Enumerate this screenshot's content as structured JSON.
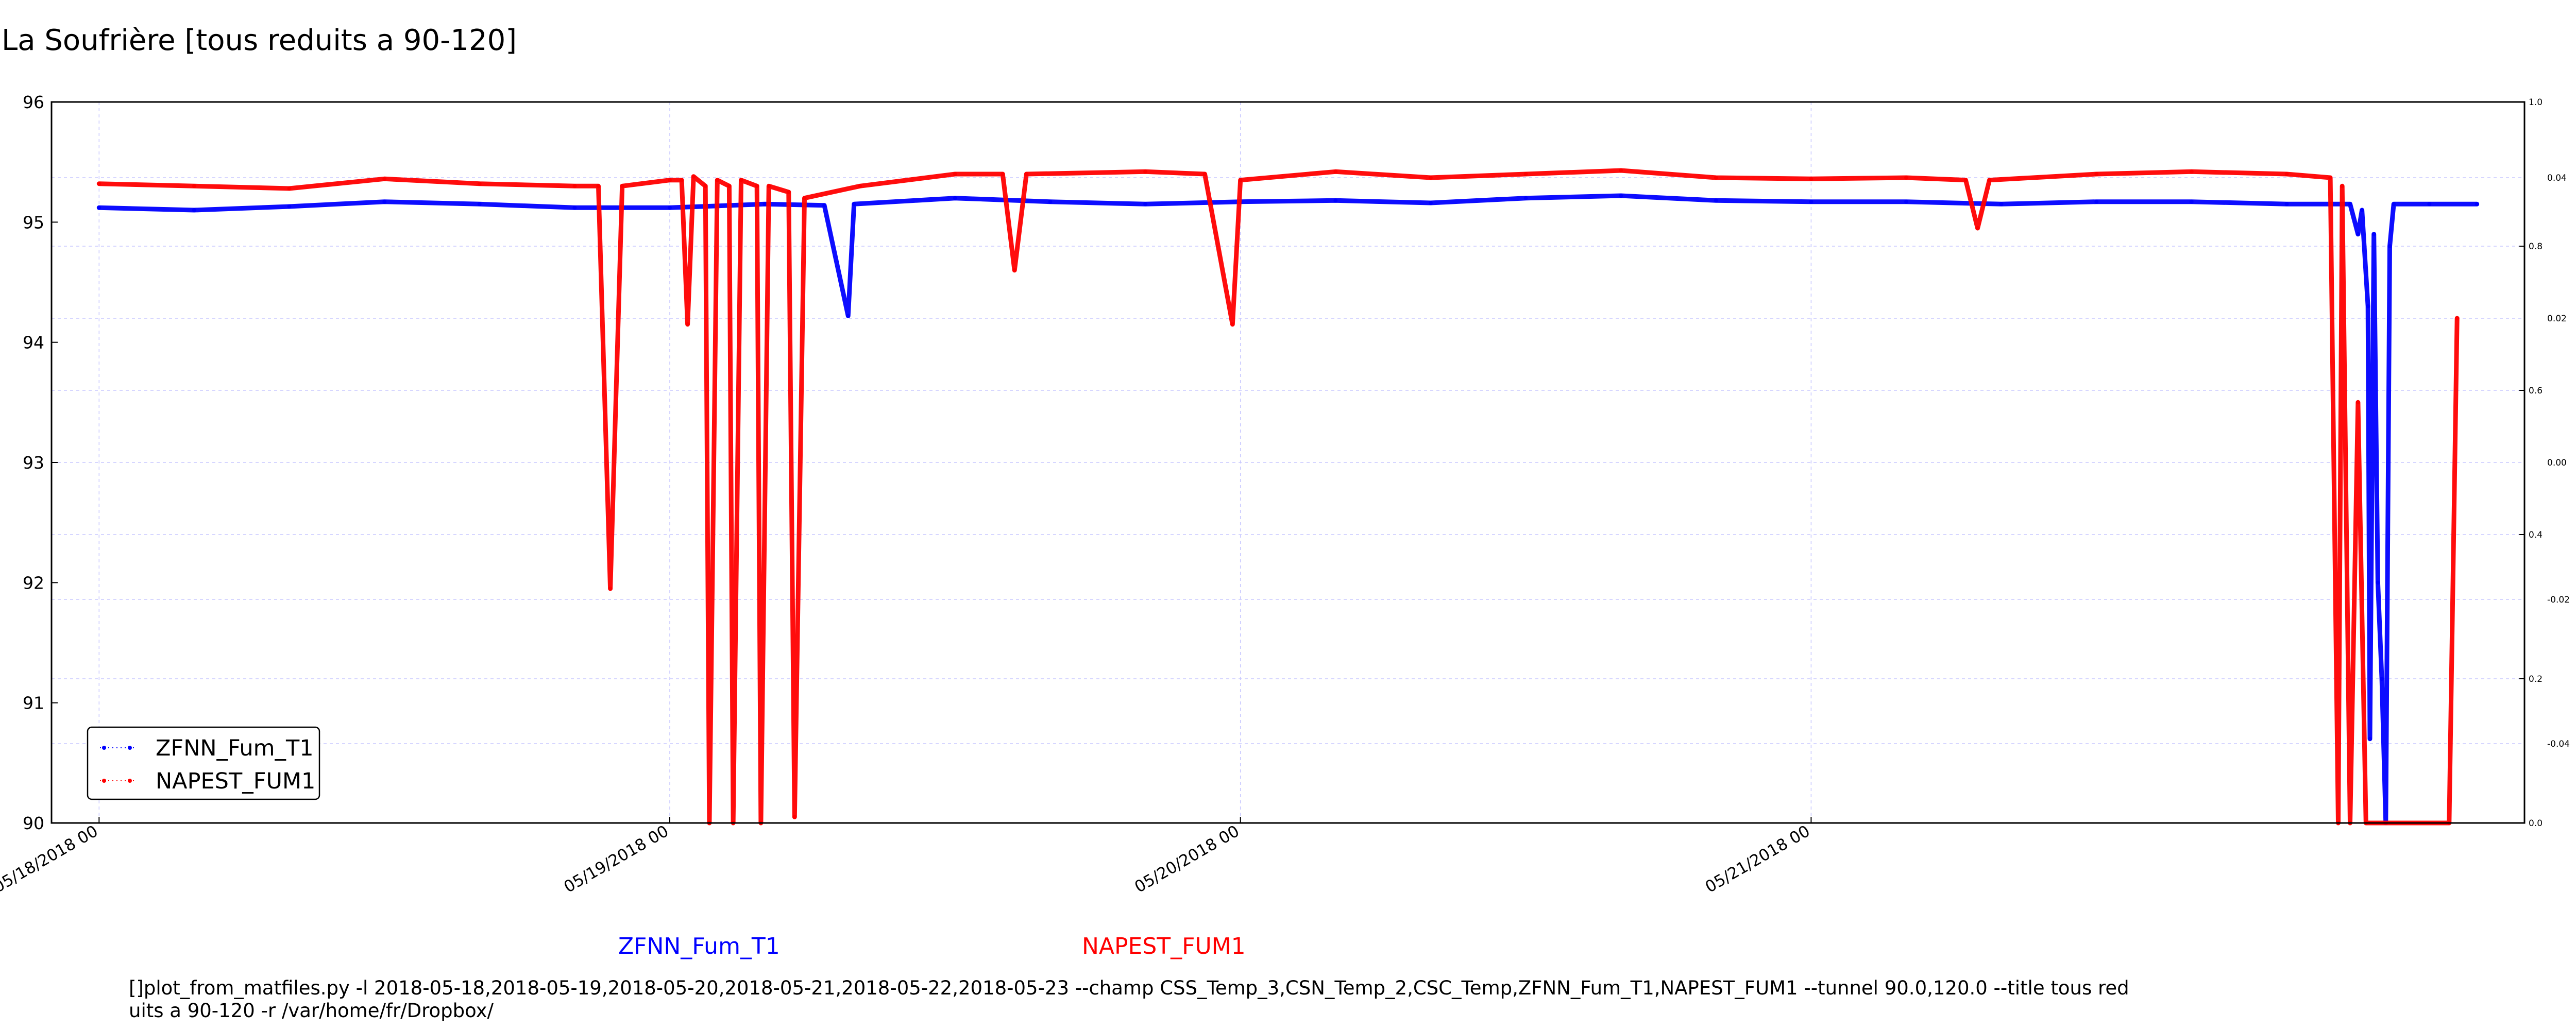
{
  "chart_data": {
    "type": "line",
    "title": "La Soufrière [tous reduits a 90-120]",
    "xlabel": "",
    "ylabel": "",
    "x_range": [
      "2018-05-18 00:00",
      "2018-05-22 00:00"
    ],
    "xlim": [
      "2018-05-17 22:00",
      "2018-05-22 06:00"
    ],
    "x_ticks": [
      "2018-05-18 00:00",
      "2018-05-19 00:00",
      "2018-05-20 00:00",
      "2018-05-21 00:00"
    ],
    "x_tick_labels": [
      "05/18/2018 00",
      "05/19/2018 00",
      "05/20/2018 00",
      "05/21/2018 00"
    ],
    "ylim": [
      90,
      96
    ],
    "y_ticks": [
      90,
      91,
      92,
      93,
      94,
      95,
      96
    ],
    "right_axis_1": {
      "ylim": [
        0.0,
        1.0
      ],
      "ticks": [
        "0.0",
        "0.2",
        "0.4",
        "0.6",
        "0.8",
        "1.0"
      ]
    },
    "right_axis_2": {
      "ticks": [
        "-0.04",
        "-0.02",
        "0.00",
        "0.02",
        "0.04"
      ]
    },
    "grid": true,
    "legend_position": "bottom-left",
    "series": [
      {
        "name": "ZFNN_Fum_T1",
        "color": "#0000ff",
        "points": [
          [
            "2018-05-18 00:00",
            95.12
          ],
          [
            "2018-05-18 04:00",
            95.1
          ],
          [
            "2018-05-18 08:00",
            95.13
          ],
          [
            "2018-05-18 12:00",
            95.17
          ],
          [
            "2018-05-18 16:00",
            95.15
          ],
          [
            "2018-05-18 20:00",
            95.12
          ],
          [
            "2018-05-19 00:00",
            95.12
          ],
          [
            "2018-05-19 04:00",
            95.15
          ],
          [
            "2018-05-19 06:30",
            95.14
          ],
          [
            "2018-05-19 07:30",
            94.22
          ],
          [
            "2018-05-19 07:45",
            95.15
          ],
          [
            "2018-05-19 12:00",
            95.2
          ],
          [
            "2018-05-19 16:00",
            95.17
          ],
          [
            "2018-05-19 20:00",
            95.15
          ],
          [
            "2018-05-20 00:00",
            95.17
          ],
          [
            "2018-05-20 04:00",
            95.18
          ],
          [
            "2018-05-20 08:00",
            95.16
          ],
          [
            "2018-05-20 12:00",
            95.2
          ],
          [
            "2018-05-20 16:00",
            95.22
          ],
          [
            "2018-05-20 20:00",
            95.18
          ],
          [
            "2018-05-21 00:00",
            95.17
          ],
          [
            "2018-05-21 04:00",
            95.17
          ],
          [
            "2018-05-21 08:00",
            95.15
          ],
          [
            "2018-05-21 12:00",
            95.17
          ],
          [
            "2018-05-21 16:00",
            95.17
          ],
          [
            "2018-05-21 20:00",
            95.15
          ],
          [
            "2018-05-21 22:40",
            95.15
          ],
          [
            "2018-05-21 23:00",
            94.9
          ],
          [
            "2018-05-21 23:10",
            95.1
          ],
          [
            "2018-05-21 23:25",
            94.3
          ],
          [
            "2018-05-21 23:30",
            90.7
          ],
          [
            "2018-05-21 23:40",
            94.9
          ],
          [
            "2018-05-21 23:50",
            92.0
          ],
          [
            "2018-05-22 00:00",
            91.2
          ],
          [
            "2018-05-22 00:10",
            90.0
          ],
          [
            "2018-05-22 00:20",
            94.8
          ],
          [
            "2018-05-22 00:30",
            95.15
          ],
          [
            "2018-05-22 02:00",
            95.15
          ],
          [
            "2018-05-22 04:00",
            95.15
          ]
        ]
      },
      {
        "name": "NAPEST_FUM1",
        "color": "#ff0000",
        "points": [
          [
            "2018-05-18 00:00",
            95.32
          ],
          [
            "2018-05-18 04:00",
            95.3
          ],
          [
            "2018-05-18 08:00",
            95.28
          ],
          [
            "2018-05-18 12:00",
            95.36
          ],
          [
            "2018-05-18 16:00",
            95.32
          ],
          [
            "2018-05-18 20:00",
            95.3
          ],
          [
            "2018-05-18 21:00",
            95.3
          ],
          [
            "2018-05-18 21:30",
            91.95
          ],
          [
            "2018-05-18 22:00",
            95.3
          ],
          [
            "2018-05-19 00:00",
            95.35
          ],
          [
            "2018-05-19 00:30",
            95.35
          ],
          [
            "2018-05-19 00:45",
            94.15
          ],
          [
            "2018-05-19 01:00",
            95.38
          ],
          [
            "2018-05-19 01:30",
            95.3
          ],
          [
            "2018-05-19 01:40",
            90.0
          ],
          [
            "2018-05-19 02:00",
            95.35
          ],
          [
            "2018-05-19 02:30",
            95.3
          ],
          [
            "2018-05-19 02:40",
            90.0
          ],
          [
            "2018-05-19 03:00",
            95.35
          ],
          [
            "2018-05-19 03:40",
            95.3
          ],
          [
            "2018-05-19 03:50",
            90.0
          ],
          [
            "2018-05-19 04:10",
            95.3
          ],
          [
            "2018-05-19 05:00",
            95.25
          ],
          [
            "2018-05-19 05:15",
            90.05
          ],
          [
            "2018-05-19 05:40",
            95.2
          ],
          [
            "2018-05-19 08:00",
            95.3
          ],
          [
            "2018-05-19 12:00",
            95.4
          ],
          [
            "2018-05-19 14:00",
            95.4
          ],
          [
            "2018-05-19 14:30",
            94.6
          ],
          [
            "2018-05-19 15:00",
            95.4
          ],
          [
            "2018-05-19 20:00",
            95.42
          ],
          [
            "2018-05-19 22:30",
            95.4
          ],
          [
            "2018-05-19 23:40",
            94.15
          ],
          [
            "2018-05-20 00:00",
            95.35
          ],
          [
            "2018-05-20 04:00",
            95.42
          ],
          [
            "2018-05-20 08:00",
            95.37
          ],
          [
            "2018-05-20 12:00",
            95.4
          ],
          [
            "2018-05-20 16:00",
            95.43
          ],
          [
            "2018-05-20 20:00",
            95.37
          ],
          [
            "2018-05-21 00:00",
            95.36
          ],
          [
            "2018-05-21 04:00",
            95.37
          ],
          [
            "2018-05-21 06:30",
            95.35
          ],
          [
            "2018-05-21 07:00",
            94.95
          ],
          [
            "2018-05-21 07:30",
            95.35
          ],
          [
            "2018-05-21 12:00",
            95.4
          ],
          [
            "2018-05-21 16:00",
            95.42
          ],
          [
            "2018-05-21 20:00",
            95.4
          ],
          [
            "2018-05-21 21:50",
            95.37
          ],
          [
            "2018-05-21 22:10",
            90.0
          ],
          [
            "2018-05-21 22:20",
            95.3
          ],
          [
            "2018-05-21 22:40",
            90.0
          ],
          [
            "2018-05-21 23:00",
            93.5
          ],
          [
            "2018-05-21 23:20",
            90.0
          ],
          [
            "2018-05-22 02:50",
            90.0
          ],
          [
            "2018-05-22 03:10",
            94.2
          ]
        ]
      }
    ]
  },
  "legend": [
    {
      "label": "ZFNN_Fum_T1",
      "color": "#0000ff"
    },
    {
      "label": "NAPEST_FUM1",
      "color": "#ff0000"
    }
  ],
  "footer_series_labels": [
    {
      "label": "ZFNN_Fum_T1",
      "color": "#0000ff"
    },
    {
      "label": "NAPEST_FUM1",
      "color": "#ff0000"
    }
  ],
  "command_line": "[]plot_from_matfiles.py -l 2018-05-18,2018-05-19,2018-05-20,2018-05-21,2018-05-22,2018-05-23 --champ CSS_Temp_3,CSN_Temp_2,CSC_Temp,ZFNN_Fum_T1,NAPEST_FUM1 --tunnel 90.0,120.0 --title tous reduits a 90-120 -r /var/home/fr/Dropbox/"
}
